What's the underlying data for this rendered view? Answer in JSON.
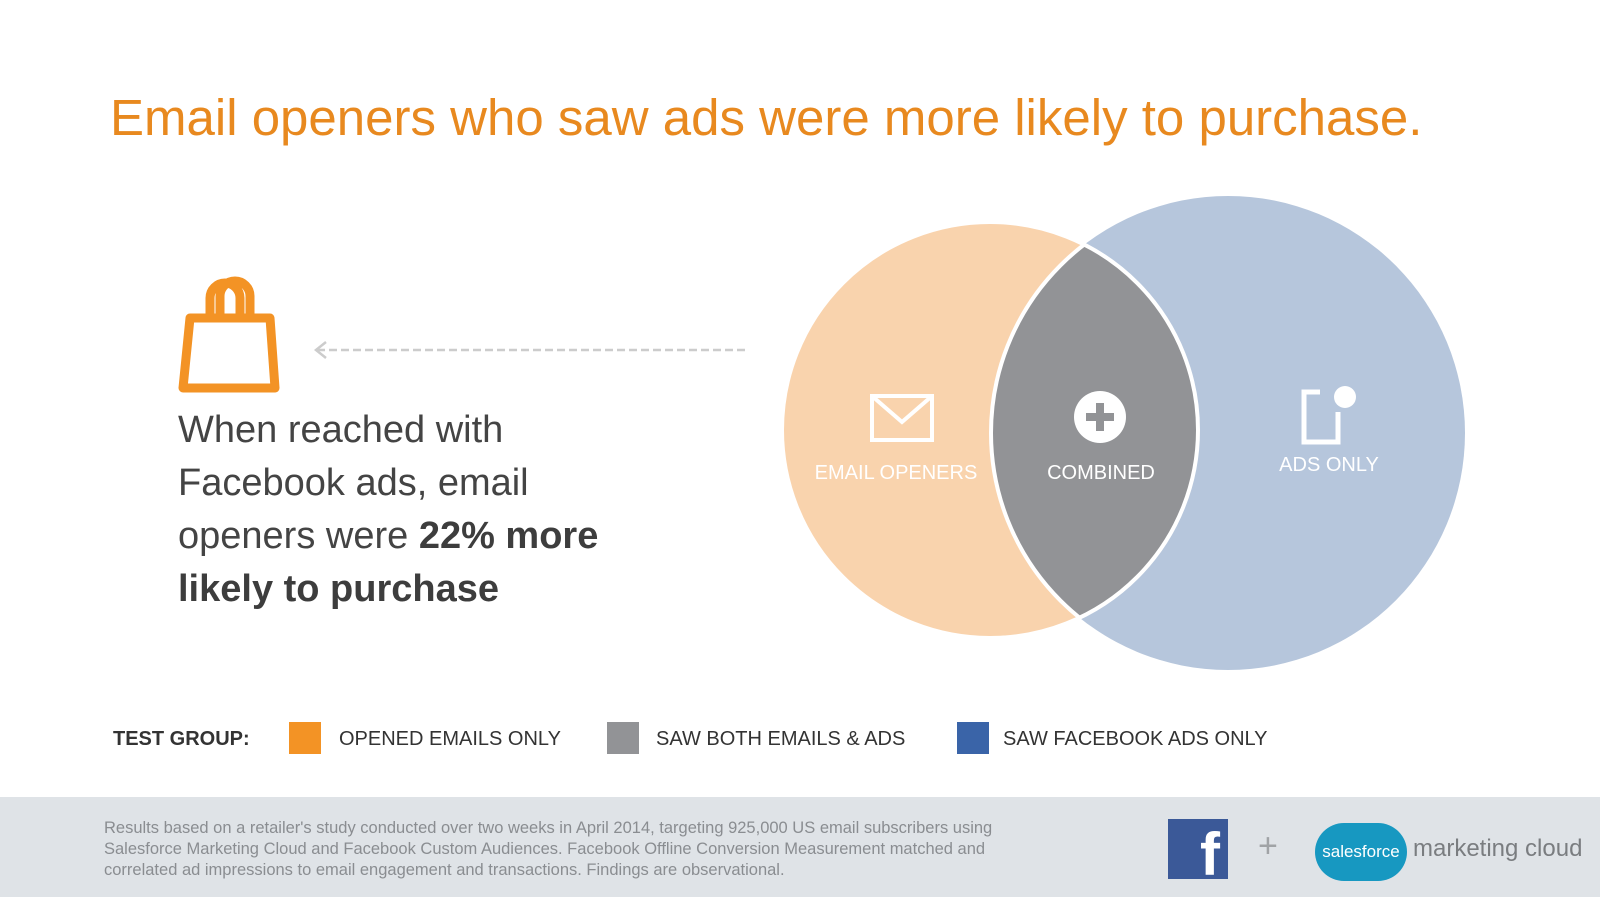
{
  "header": {
    "title": "Email openers who saw ads were more likely to purchase."
  },
  "statement": {
    "text": "When reached with Facebook ads, email openers were ",
    "emphasis": "22% more likely to purchase"
  },
  "venn": {
    "labels": [
      "EMAIL OPENERS",
      "COMBINED",
      "ADS ONLY"
    ]
  },
  "legend": {
    "label": "TEST GROUP:",
    "items": [
      {
        "label": "OPENED EMAILS ONLY",
        "color": "#f39325"
      },
      {
        "label": "SAW BOTH EMAILS & ADS",
        "color": "#929396"
      },
      {
        "label": "SAW FACEBOOK ADS ONLY",
        "color": "#3a64a8"
      }
    ]
  },
  "footer": {
    "lines": [
      "Results based on a retailer's study conducted over two weeks in April 2014, targeting 925,000 US email subscribers using",
      "Salesforce Marketing Cloud and Facebook Custom Audiences. Facebook Offline Conversion Measurement matched and",
      "correlated ad impressions to email engagement and transactions. Findings are observational."
    ]
  },
  "logos": {
    "facebook": "f",
    "plus": "+",
    "salesforce": "salesforce",
    "product": "marketing cloud"
  }
}
